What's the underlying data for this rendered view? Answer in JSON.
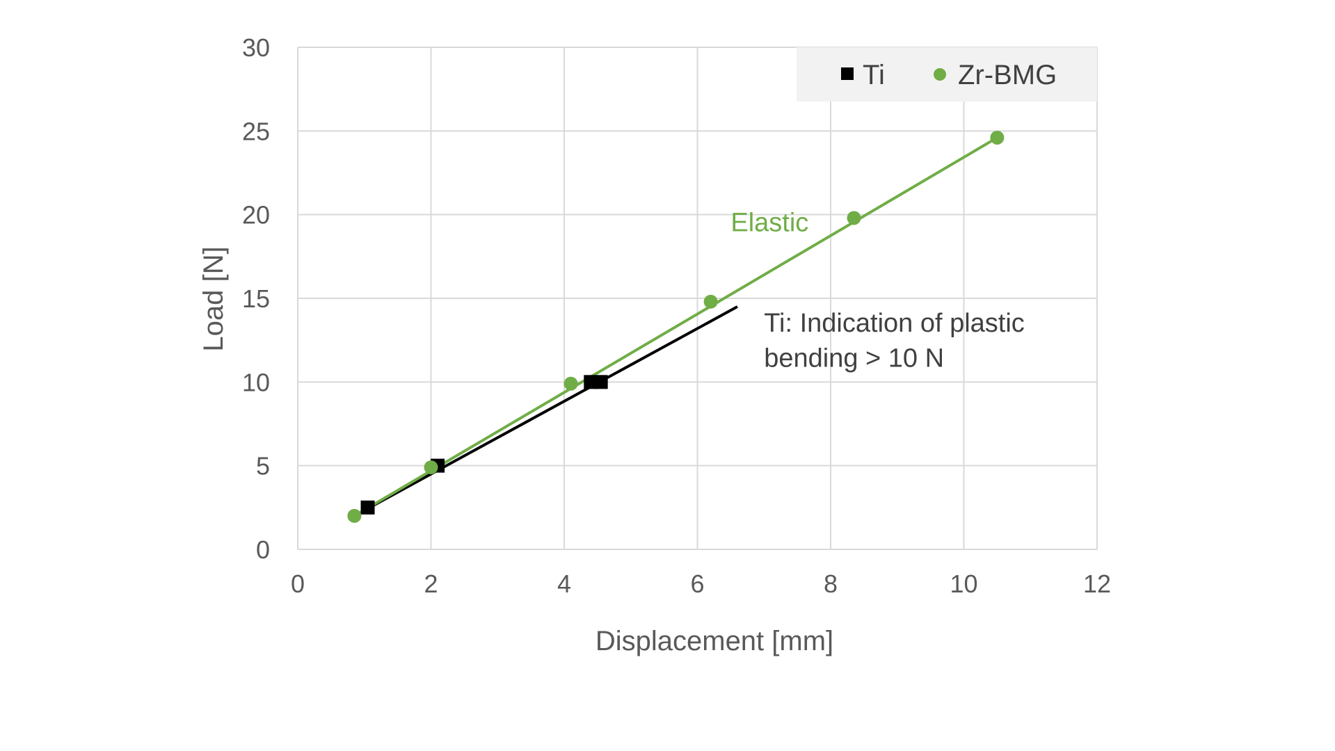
{
  "chart_data": {
    "type": "scatter",
    "xlabel": "Displacement [mm]",
    "ylabel": "Load [N]",
    "xlim": [
      0,
      12
    ],
    "ylim": [
      0,
      30
    ],
    "xticks": [
      0,
      2,
      4,
      6,
      8,
      10,
      12
    ],
    "yticks": [
      0,
      5,
      10,
      15,
      20,
      25,
      30
    ],
    "grid": true,
    "legend_position": "top-right",
    "series": [
      {
        "name": "Ti",
        "marker": "square",
        "color": "#000000",
        "points": [
          {
            "x": 1.05,
            "y": 2.5
          },
          {
            "x": 2.1,
            "y": 5.0
          },
          {
            "x": 4.4,
            "y": 10.0
          },
          {
            "x": 4.55,
            "y": 10.0
          }
        ],
        "trendline": {
          "from": {
            "x": 0.85,
            "y": 2.0
          },
          "to": {
            "x": 6.6,
            "y": 14.5
          }
        }
      },
      {
        "name": "Zr-BMG",
        "marker": "circle",
        "color": "#70ad47",
        "points": [
          {
            "x": 0.85,
            "y": 2.0
          },
          {
            "x": 2.0,
            "y": 4.9
          },
          {
            "x": 4.1,
            "y": 9.9
          },
          {
            "x": 6.2,
            "y": 14.8
          },
          {
            "x": 8.35,
            "y": 19.8
          },
          {
            "x": 10.5,
            "y": 24.6
          }
        ],
        "trendline": {
          "from": {
            "x": 0.85,
            "y": 2.0
          },
          "to": {
            "x": 10.5,
            "y": 24.6
          }
        }
      }
    ],
    "annotations": [
      {
        "text": "Elastic",
        "color": "#70ad47",
        "x": 6.5,
        "y": 19.0
      },
      {
        "text": "Ti: Indication of plastic",
        "color": "#404040",
        "x": 7.0,
        "y": 13.0
      },
      {
        "text": "bending > 10 N",
        "color": "#404040",
        "x": 7.0,
        "y": 10.9
      }
    ]
  }
}
